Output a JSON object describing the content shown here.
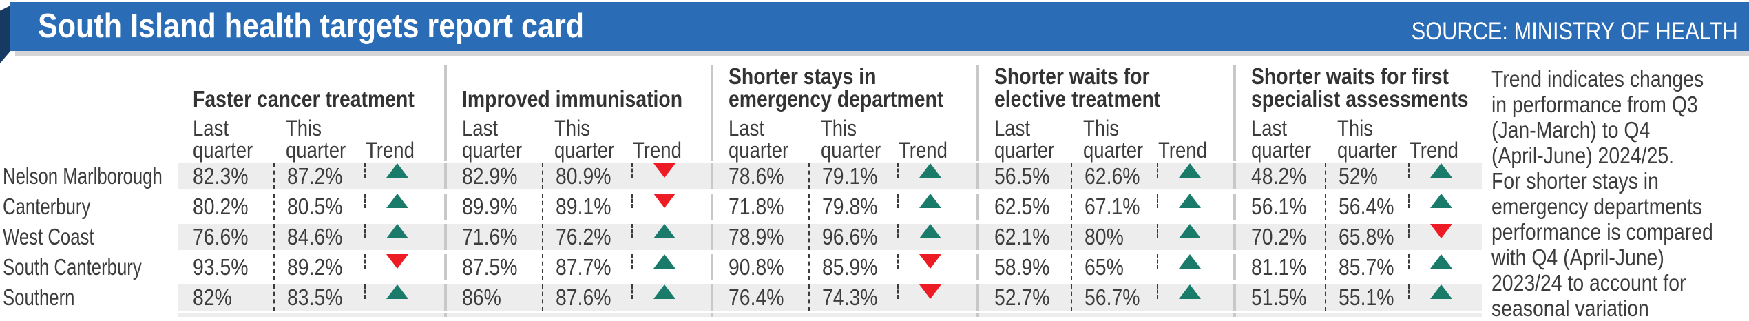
{
  "header": {
    "title": "South Island health targets report card",
    "source": "SOURCE: MINISTRY OF HEALTH"
  },
  "sub_columns": {
    "last": "Last\nquarter",
    "this": "This\nquarter",
    "trend": "Trend"
  },
  "note": "Trend indicates changes\nin performance from Q3\n(Jan-March) to Q4\n(April-June) 2024/25.\nFor shorter stays in\nemergency departments\nperformance is compared\nwith Q4 (April-June)\n2023/24 to account for\nseasonal variation",
  "colors": {
    "header_bar": "#2a6cb5",
    "header_fold": "#173a63",
    "stripe": "#ededed",
    "group_divider": "#c8c8c8",
    "trend_up": "#1b7b6a",
    "trend_down": "#ec1b24"
  },
  "chart_data": {
    "type": "table",
    "title": "South Island health targets report card",
    "source": "SOURCE: MINISTRY OF HEALTH",
    "column_groups": [
      {
        "title": "Faster cancer treatment"
      },
      {
        "title": "Improved immunisation"
      },
      {
        "title": "Shorter stays in\nemergency department"
      },
      {
        "title": "Shorter waits for\nelective treatment"
      },
      {
        "title": "Shorter waits for first\nspecialist assessments"
      }
    ],
    "sub_columns": [
      "Last quarter",
      "This quarter",
      "Trend"
    ],
    "rows": [
      {
        "label": "Nelson Marlborough",
        "cells": [
          {
            "last": "82.3%",
            "this": "87.2%",
            "trend": "up"
          },
          {
            "last": "82.9%",
            "this": "80.9%",
            "trend": "down"
          },
          {
            "last": "78.6%",
            "this": "79.1%",
            "trend": "up"
          },
          {
            "last": "56.5%",
            "this": "62.6%",
            "trend": "up"
          },
          {
            "last": "48.2%",
            "this": "52%",
            "trend": "up"
          }
        ]
      },
      {
        "label": "Canterbury",
        "cells": [
          {
            "last": "80.2%",
            "this": "80.5%",
            "trend": "up"
          },
          {
            "last": "89.9%",
            "this": "89.1%",
            "trend": "down"
          },
          {
            "last": "71.8%",
            "this": "79.8%",
            "trend": "up"
          },
          {
            "last": "62.5%",
            "this": "67.1%",
            "trend": "up"
          },
          {
            "last": "56.1%",
            "this": "56.4%",
            "trend": "up"
          }
        ]
      },
      {
        "label": "West Coast",
        "cells": [
          {
            "last": "76.6%",
            "this": "84.6%",
            "trend": "up"
          },
          {
            "last": "71.6%",
            "this": "76.2%",
            "trend": "up"
          },
          {
            "last": "78.9%",
            "this": "96.6%",
            "trend": "up"
          },
          {
            "last": "62.1%",
            "this": "80%",
            "trend": "up"
          },
          {
            "last": "70.2%",
            "this": "65.8%",
            "trend": "down"
          }
        ]
      },
      {
        "label": "South Canterbury",
        "cells": [
          {
            "last": "93.5%",
            "this": "89.2%",
            "trend": "down"
          },
          {
            "last": "87.5%",
            "this": "87.7%",
            "trend": "up"
          },
          {
            "last": "90.8%",
            "this": "85.9%",
            "trend": "down"
          },
          {
            "last": "58.9%",
            "this": "65%",
            "trend": "up"
          },
          {
            "last": "81.1%",
            "this": "85.7%",
            "trend": "up"
          }
        ]
      },
      {
        "label": "Southern",
        "cells": [
          {
            "last": "82%",
            "this": "83.5%",
            "trend": "up"
          },
          {
            "last": "86%",
            "this": "87.6%",
            "trend": "up"
          },
          {
            "last": "76.4%",
            "this": "74.3%",
            "trend": "down"
          },
          {
            "last": "52.7%",
            "this": "56.7%",
            "trend": "up"
          },
          {
            "last": "51.5%",
            "this": "55.1%",
            "trend": "up"
          }
        ]
      }
    ],
    "note": "Trend indicates changes in performance from Q3 (Jan-March) to Q4 (April-June) 2024/25. For shorter stays in emergency departments performance is compared with Q4 (April-June) 2023/24 to account for seasonal variation"
  }
}
